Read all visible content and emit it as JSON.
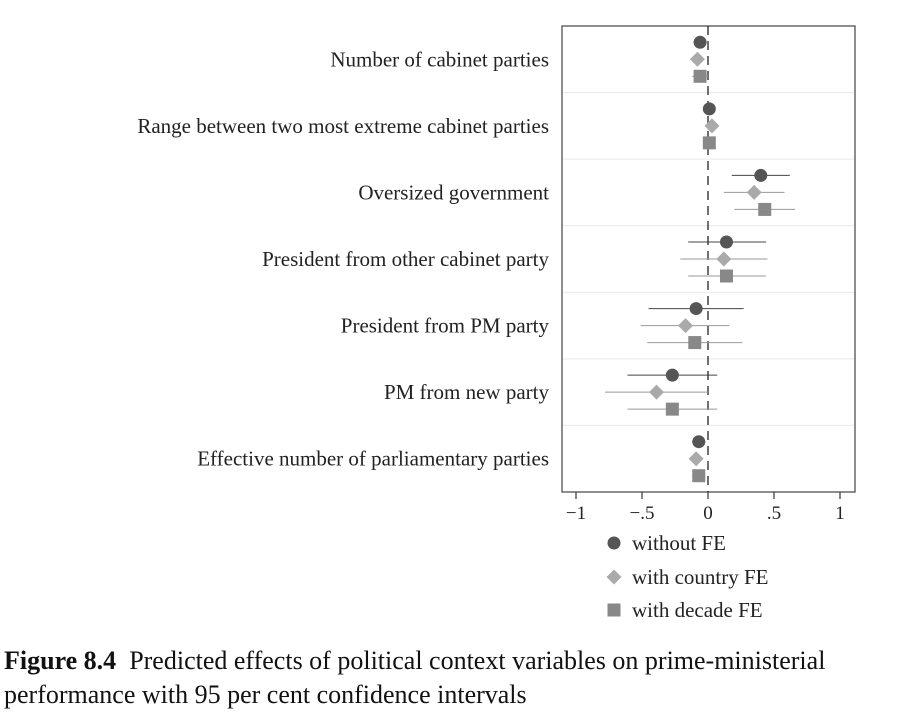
{
  "chart_data": {
    "type": "scatter",
    "title": "",
    "xlabel": "",
    "ylabel": "",
    "xlim": [
      -1.1,
      1.12
    ],
    "x_ticks": [
      -1,
      -0.5,
      0,
      0.5,
      1
    ],
    "x_tick_labels": [
      "−1",
      "−.5",
      "0",
      ".5",
      "1"
    ],
    "reference_line_x": 0,
    "categories": [
      "Number of cabinet parties",
      "Range between two most extreme cabinet parties",
      "Oversized government",
      "President from other cabinet party",
      "President from PM party",
      "PM from new party",
      "Effective number of parliamentary parties"
    ],
    "series": [
      {
        "name": "without FE",
        "marker": "circle",
        "color": "#555555",
        "estimates": [
          -0.06,
          0.01,
          0.4,
          0.14,
          -0.09,
          -0.27,
          -0.07
        ],
        "ci_low": [
          -0.11,
          -0.02,
          0.18,
          -0.15,
          -0.45,
          -0.61,
          -0.12
        ],
        "ci_high": [
          -0.01,
          0.04,
          0.62,
          0.44,
          0.27,
          0.07,
          -0.02
        ]
      },
      {
        "name": "with country FE",
        "marker": "diamond",
        "color": "#aaaaaa",
        "estimates": [
          -0.08,
          0.03,
          0.35,
          0.12,
          -0.17,
          -0.39,
          -0.09
        ],
        "ci_low": [
          -0.13,
          0.0,
          0.12,
          -0.21,
          -0.51,
          -0.78,
          -0.14
        ],
        "ci_high": [
          -0.03,
          0.06,
          0.58,
          0.45,
          0.16,
          0.0,
          -0.04
        ]
      },
      {
        "name": "with decade FE",
        "marker": "square",
        "color": "#888888",
        "estimates": [
          -0.06,
          0.01,
          0.43,
          0.14,
          -0.1,
          -0.27,
          -0.07
        ],
        "ci_low": [
          -0.12,
          -0.02,
          0.2,
          -0.15,
          -0.46,
          -0.61,
          -0.12
        ],
        "ci_high": [
          0.0,
          0.04,
          0.66,
          0.44,
          0.26,
          0.07,
          -0.02
        ]
      }
    ],
    "grid": true,
    "legend_position": "bottom"
  },
  "caption": {
    "figure_number": "Figure 8.4",
    "text": "Predicted effects of political context variables on prime-ministerial performance with 95 per cent confidence intervals"
  }
}
